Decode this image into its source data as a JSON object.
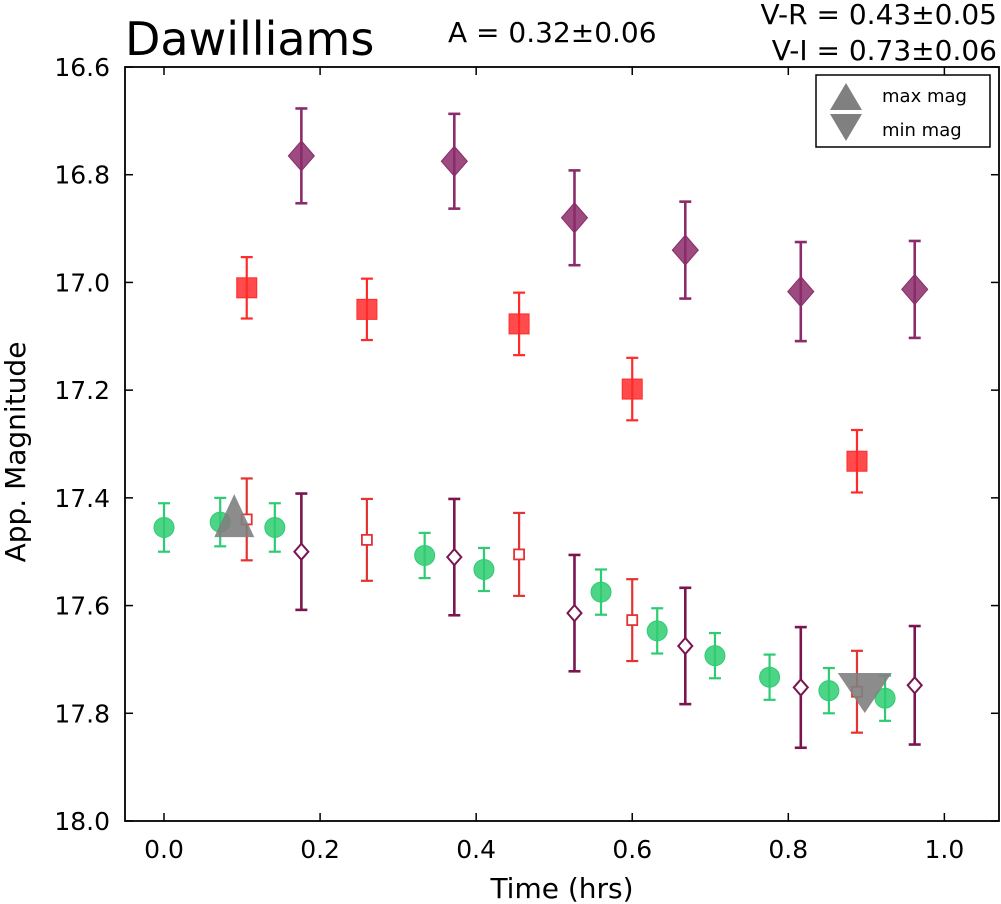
{
  "chart_data": {
    "type": "scatter",
    "title": "Dawilliams",
    "amplitude_text": "A  = 0.32±0.06",
    "color_index_texts": [
      "V-R = 0.43±0.05",
      "V-I  = 0.73±0.06"
    ],
    "xlabel": "Time (hrs)",
    "ylabel": "App. Magnitude",
    "xlim": [
      -0.05,
      1.07
    ],
    "ylim": [
      18.0,
      16.6
    ],
    "y_inverted": true,
    "xticks": [
      "0.0",
      "0.2",
      "0.4",
      "0.6",
      "0.8",
      "1.0"
    ],
    "xtick_values": [
      0.0,
      0.2,
      0.4,
      0.6,
      0.8,
      1.0
    ],
    "yticks": [
      "16.6",
      "16.8",
      "17.0",
      "17.2",
      "17.4",
      "17.6",
      "17.8",
      "18.0"
    ],
    "ytick_values": [
      16.6,
      16.8,
      17.0,
      17.2,
      17.4,
      17.6,
      17.8,
      18.0
    ],
    "grid": false,
    "legend": {
      "position": "top-right",
      "entries": [
        {
          "label": "max mag",
          "marker": "triangle-up",
          "color": "#808080"
        },
        {
          "label": "min mag",
          "marker": "triangle-down",
          "color": "#808080"
        }
      ]
    },
    "series": [
      {
        "marker": "circle",
        "color": "#2ecc71",
        "filled": true,
        "x": [
          0.0,
          0.072,
          0.142,
          0.334,
          0.41,
          0.56,
          0.632,
          0.706,
          0.776,
          0.852,
          0.924
        ],
        "y": [
          17.455,
          17.445,
          17.455,
          17.507,
          17.533,
          17.575,
          17.647,
          17.693,
          17.733,
          17.758,
          17.772
        ],
        "err": [
          0.045,
          0.045,
          0.045,
          0.042,
          0.04,
          0.042,
          0.042,
          0.042,
          0.042,
          0.042,
          0.042
        ]
      },
      {
        "marker": "square",
        "color": "#ff2b2b",
        "filled": true,
        "x": [
          0.106,
          0.26,
          0.455,
          0.6,
          0.888
        ],
        "y": [
          17.01,
          17.05,
          17.077,
          17.198,
          17.332
        ],
        "err": [
          0.057,
          0.057,
          0.058,
          0.058,
          0.058
        ]
      },
      {
        "marker": "square",
        "color": "#e33333",
        "filled": false,
        "x": [
          0.106,
          0.26,
          0.455,
          0.6,
          0.888
        ],
        "y": [
          17.44,
          17.478,
          17.505,
          17.627,
          17.76
        ],
        "err": [
          0.076,
          0.076,
          0.077,
          0.076,
          0.076
        ]
      },
      {
        "marker": "diamond",
        "color": "#8b2c6a",
        "filled": true,
        "x": [
          0.176,
          0.372,
          0.526,
          0.668,
          0.816,
          0.962
        ],
        "y": [
          16.765,
          16.775,
          16.88,
          16.94,
          17.017,
          17.013
        ],
        "err": [
          0.088,
          0.088,
          0.088,
          0.09,
          0.092,
          0.09
        ]
      },
      {
        "marker": "diamond",
        "color": "#7a1550",
        "filled": false,
        "x": [
          0.176,
          0.372,
          0.526,
          0.668,
          0.816,
          0.962
        ],
        "y": [
          17.5,
          17.51,
          17.614,
          17.675,
          17.752,
          17.748
        ],
        "err": [
          0.108,
          0.108,
          0.108,
          0.108,
          0.112,
          0.11
        ]
      }
    ],
    "extrema": [
      {
        "type": "max",
        "marker": "triangle-up",
        "x": 0.09,
        "y": 17.445,
        "color": "#808080"
      },
      {
        "type": "min",
        "marker": "triangle-down",
        "x": 0.898,
        "y": 17.755,
        "color": "#808080"
      }
    ]
  }
}
